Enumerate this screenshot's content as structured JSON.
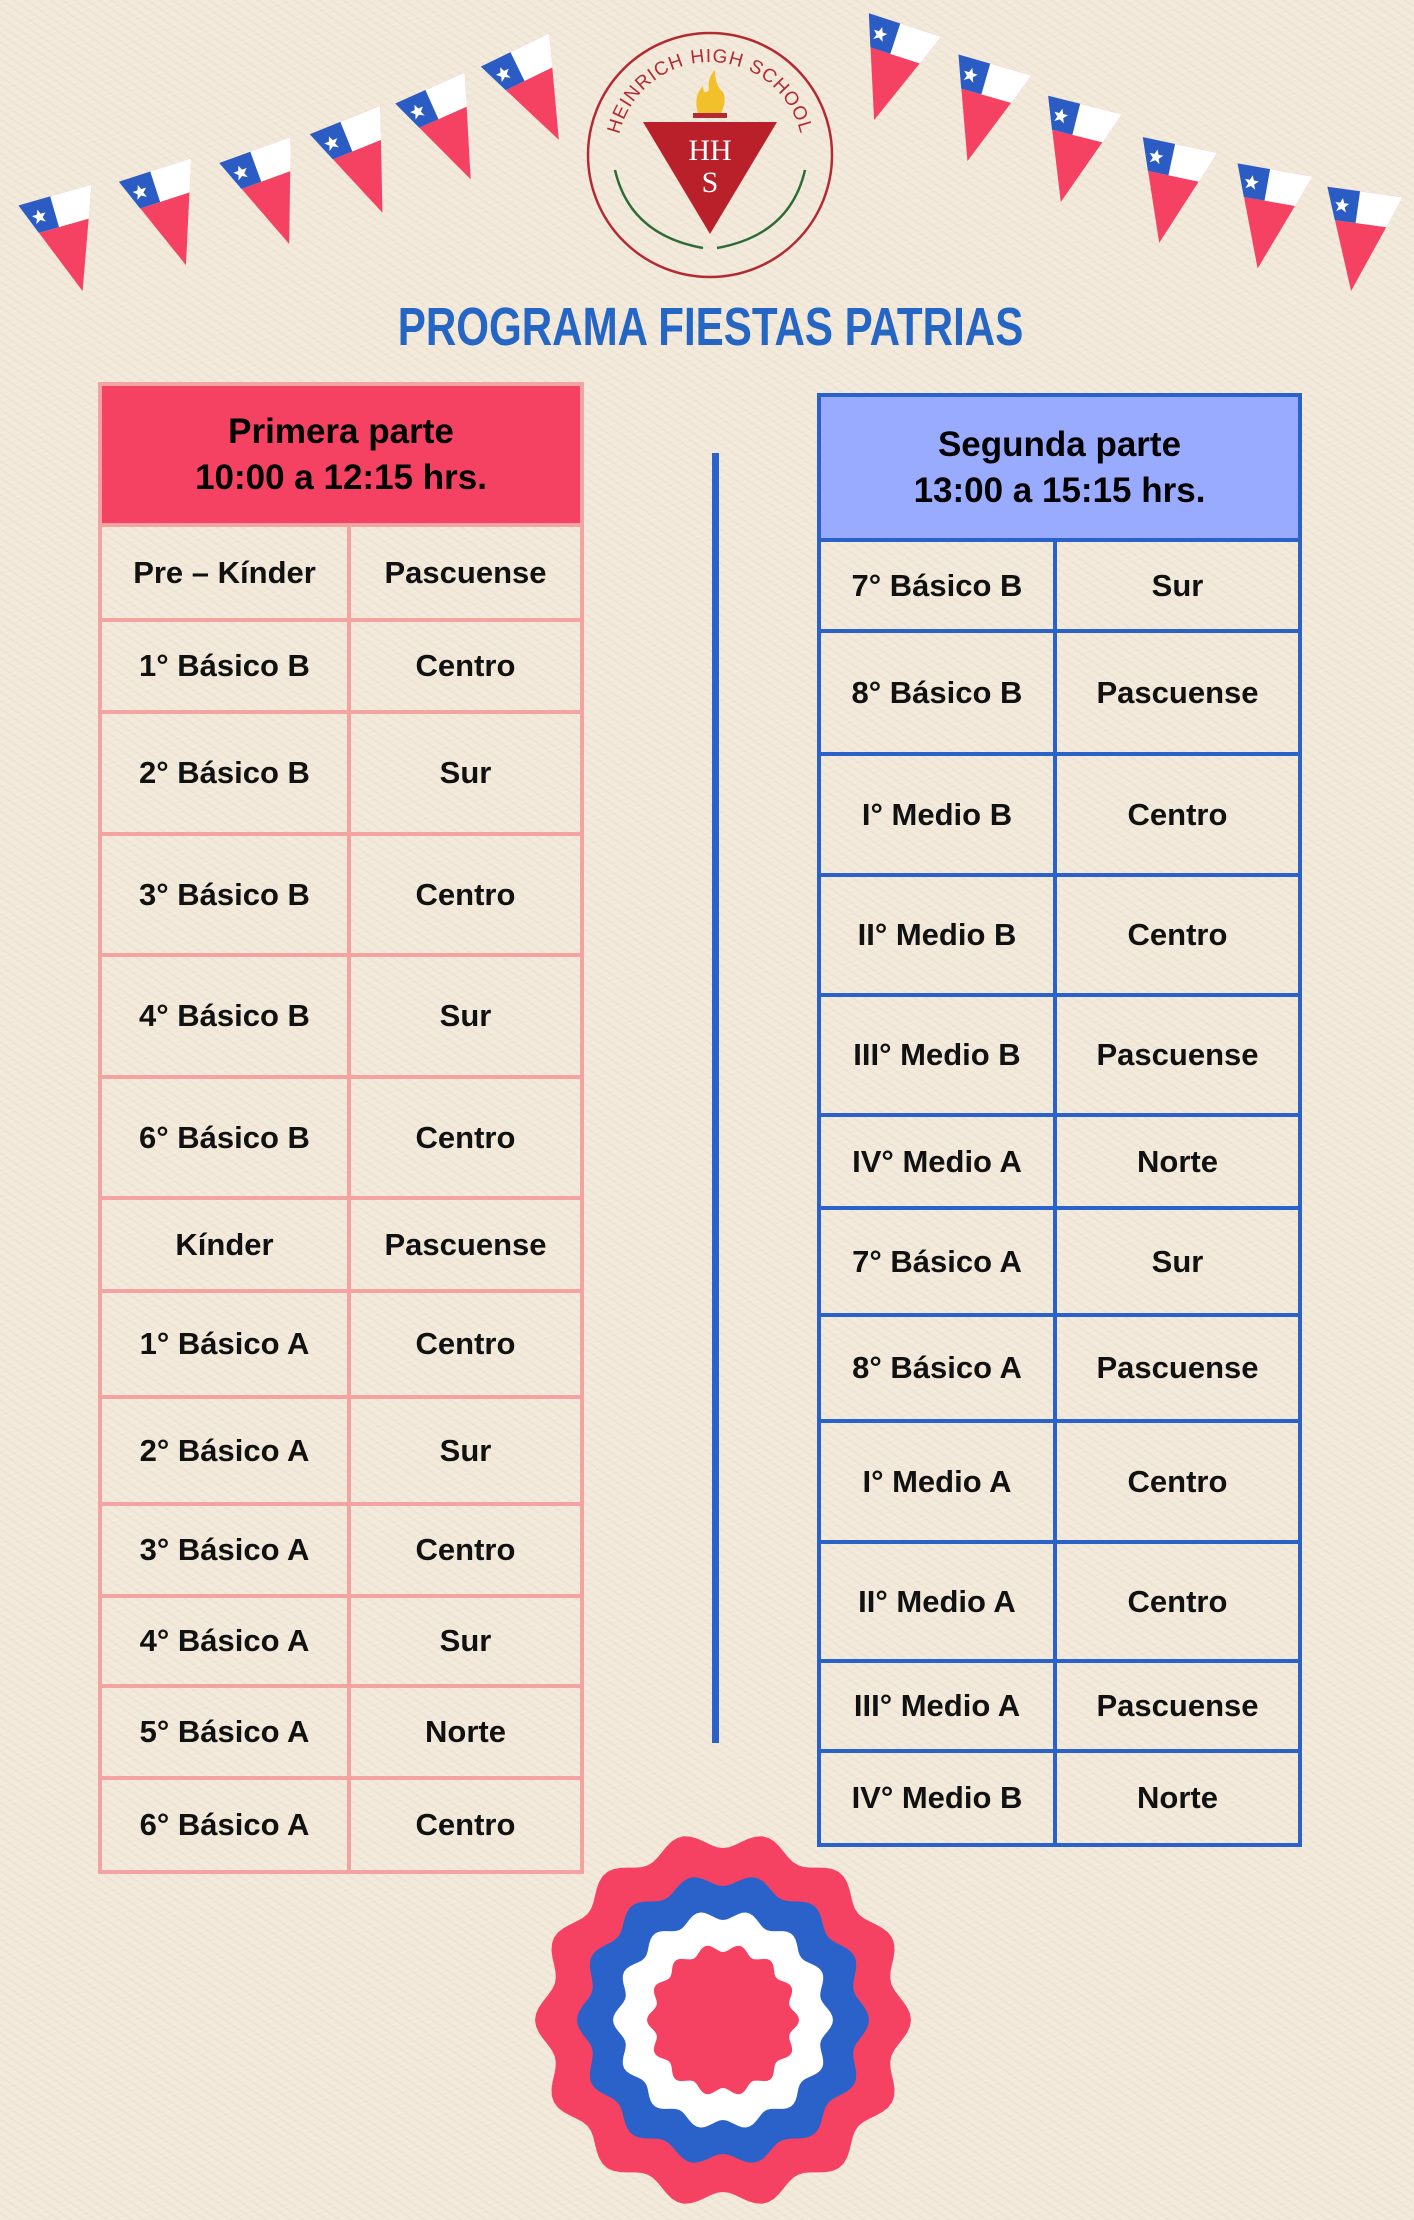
{
  "logo": {
    "text": "HEINRICH HIGH SCHOOL",
    "initials": "HHS"
  },
  "title": "PROGRAMA FIESTAS PATRIAS",
  "colors": {
    "red": "#f54263",
    "blue": "#2a62c9",
    "light_blue": "#99abff",
    "title_blue": "#2565c4",
    "pink_border": "#f4a3a3"
  },
  "primera": {
    "title": "Primera parte",
    "time": "10:00 a 12:15 hrs.",
    "rows": [
      {
        "curso": "Pre – Kínder",
        "zona": "Pascuense"
      },
      {
        "curso": "1° Básico B",
        "zona": "Centro"
      },
      {
        "curso": "2° Básico B",
        "zona": "Sur"
      },
      {
        "curso": "3° Básico B",
        "zona": "Centro"
      },
      {
        "curso": "4° Básico B",
        "zona": "Sur"
      },
      {
        "curso": "6° Básico B",
        "zona": "Centro"
      },
      {
        "curso": "Kínder",
        "zona": "Pascuense"
      },
      {
        "curso": "1° Básico A",
        "zona": "Centro"
      },
      {
        "curso": "2° Básico A",
        "zona": "Sur"
      },
      {
        "curso": "3° Básico A",
        "zona": "Centro"
      },
      {
        "curso": "4° Básico A",
        "zona": "Sur"
      },
      {
        "curso": "5° Básico A",
        "zona": "Norte"
      },
      {
        "curso": "6° Básico A",
        "zona": "Centro"
      }
    ]
  },
  "segunda": {
    "title": "Segunda parte",
    "time": "13:00 a 15:15 hrs.",
    "rows": [
      {
        "curso": "7° Básico B",
        "zona": "Sur"
      },
      {
        "curso": "8° Básico B",
        "zona": "Pascuense"
      },
      {
        "curso": "I° Medio B",
        "zona": "Centro"
      },
      {
        "curso": "II° Medio B",
        "zona": "Centro"
      },
      {
        "curso": "III° Medio B",
        "zona": "Pascuense"
      },
      {
        "curso": "IV° Medio A",
        "zona": "Norte"
      },
      {
        "curso": "7° Básico A",
        "zona": "Sur"
      },
      {
        "curso": "8° Básico A",
        "zona": "Pascuense"
      },
      {
        "curso": "I° Medio A",
        "zona": "Centro"
      },
      {
        "curso": "II° Medio A",
        "zona": "Centro"
      },
      {
        "curso": "III° Medio A",
        "zona": "Pascuense"
      },
      {
        "curso": "IV° Medio B",
        "zona": "Norte"
      }
    ]
  }
}
